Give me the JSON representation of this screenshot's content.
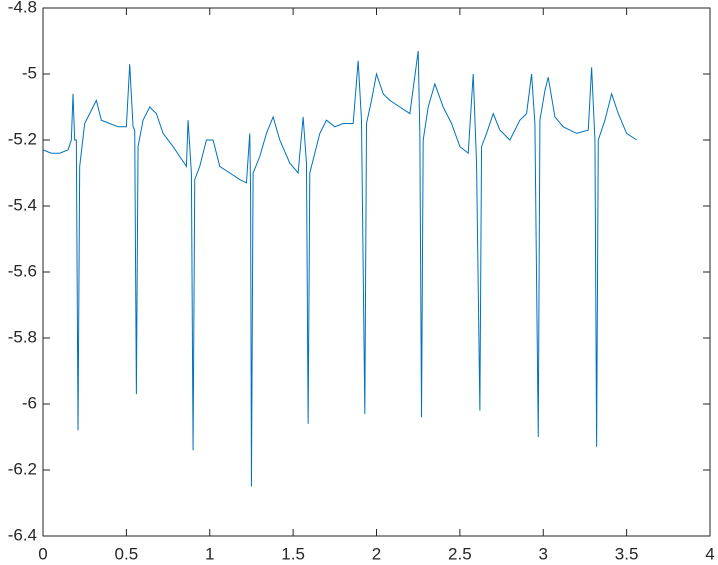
{
  "chart_data": {
    "type": "line",
    "x": [
      0,
      0.05,
      0.1,
      0.15,
      0.17,
      0.18,
      0.19,
      0.2,
      0.21,
      0.22,
      0.25,
      0.28,
      0.32,
      0.35,
      0.4,
      0.45,
      0.5,
      0.52,
      0.54,
      0.55,
      0.56,
      0.57,
      0.6,
      0.64,
      0.68,
      0.72,
      0.78,
      0.82,
      0.86,
      0.87,
      0.89,
      0.9,
      0.91,
      0.94,
      0.98,
      1.02,
      1.06,
      1.12,
      1.18,
      1.22,
      1.24,
      1.245,
      1.25,
      1.26,
      1.3,
      1.34,
      1.38,
      1.42,
      1.48,
      1.53,
      1.56,
      1.58,
      1.59,
      1.6,
      1.63,
      1.66,
      1.7,
      1.75,
      1.8,
      1.86,
      1.89,
      1.91,
      1.93,
      1.94,
      1.97,
      2.0,
      2.04,
      2.08,
      2.14,
      2.2,
      2.25,
      2.26,
      2.27,
      2.28,
      2.31,
      2.35,
      2.4,
      2.45,
      2.5,
      2.55,
      2.58,
      2.6,
      2.62,
      2.63,
      2.66,
      2.7,
      2.74,
      2.8,
      2.86,
      2.9,
      2.93,
      2.95,
      2.97,
      2.98,
      3.01,
      3.03,
      3.07,
      3.12,
      3.2,
      3.27,
      3.29,
      3.31,
      3.32,
      3.33,
      3.37,
      3.41,
      3.45,
      3.5,
      3.56
    ],
    "series": [
      {
        "color": "#0072bd",
        "values": [
          -5.23,
          -5.24,
          -5.24,
          -5.23,
          -5.2,
          -5.06,
          -5.2,
          -5.2,
          -6.08,
          -5.28,
          -5.15,
          -5.12,
          -5.08,
          -5.14,
          -5.15,
          -5.16,
          -5.16,
          -4.97,
          -5.16,
          -5.17,
          -5.97,
          -5.22,
          -5.14,
          -5.1,
          -5.12,
          -5.18,
          -5.22,
          -5.25,
          -5.28,
          -5.14,
          -5.3,
          -6.14,
          -5.32,
          -5.28,
          -5.2,
          -5.2,
          -5.28,
          -5.3,
          -5.32,
          -5.33,
          -5.18,
          -5.36,
          -6.25,
          -5.3,
          -5.25,
          -5.18,
          -5.13,
          -5.2,
          -5.27,
          -5.3,
          -5.13,
          -5.27,
          -6.06,
          -5.3,
          -5.24,
          -5.18,
          -5.14,
          -5.16,
          -5.15,
          -5.15,
          -4.96,
          -5.14,
          -6.03,
          -5.15,
          -5.08,
          -5.0,
          -5.06,
          -5.08,
          -5.1,
          -5.12,
          -4.93,
          -5.18,
          -6.04,
          -5.2,
          -5.1,
          -5.03,
          -5.1,
          -5.15,
          -5.22,
          -5.24,
          -5.0,
          -5.27,
          -6.02,
          -5.22,
          -5.18,
          -5.12,
          -5.17,
          -5.2,
          -5.14,
          -5.12,
          -5.0,
          -5.15,
          -6.1,
          -5.14,
          -5.05,
          -5.01,
          -5.13,
          -5.16,
          -5.18,
          -5.17,
          -4.98,
          -5.2,
          -6.13,
          -5.2,
          -5.14,
          -5.06,
          -5.12,
          -5.18,
          -5.2
        ]
      }
    ],
    "xlim": [
      0,
      4
    ],
    "xticks": [
      0,
      0.5,
      1,
      1.5,
      2,
      2.5,
      3,
      3.5,
      4
    ],
    "ylim": [
      -6.4,
      -4.8
    ],
    "yticks": [
      -6.4,
      -6.2,
      -6,
      -5.8,
      -5.6,
      -5.4,
      -5.2,
      -5,
      -4.8
    ],
    "grid": false
  }
}
